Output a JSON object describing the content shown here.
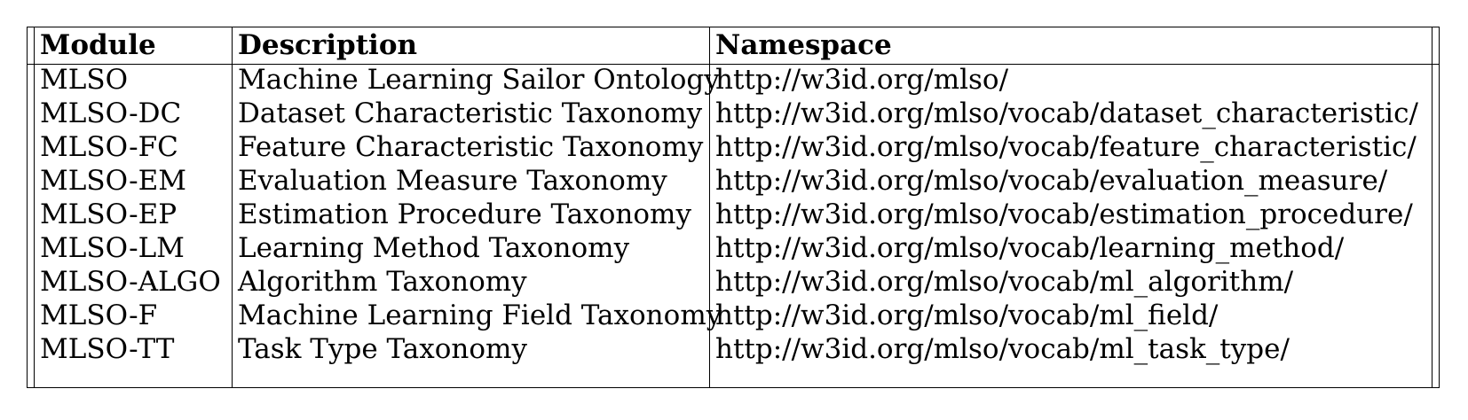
{
  "table": {
    "headers": {
      "module": "Module",
      "description": "Description",
      "namespace": "Namespace"
    },
    "rows": [
      {
        "module": "MLSO",
        "description": "Machine Learning Sailor Ontology",
        "namespace": "http://w3id.org/mlso/"
      },
      {
        "module": "MLSO-DC",
        "description": "Dataset Characteristic Taxonomy",
        "namespace": "http://w3id.org/mlso/vocab/dataset_characteristic/"
      },
      {
        "module": "MLSO-FC",
        "description": "Feature Characteristic Taxonomy",
        "namespace": "http://w3id.org/mlso/vocab/feature_characteristic/"
      },
      {
        "module": "MLSO-EM",
        "description": "Evaluation Measure Taxonomy",
        "namespace": "http://w3id.org/mlso/vocab/evaluation_measure/"
      },
      {
        "module": "MLSO-EP",
        "description": "Estimation Procedure Taxonomy",
        "namespace": "http://w3id.org/mlso/vocab/estimation_procedure/"
      },
      {
        "module": "MLSO-LM",
        "description": "Learning Method Taxonomy",
        "namespace": "http://w3id.org/mlso/vocab/learning_method/"
      },
      {
        "module": "MLSO-ALGO",
        "description": "Algorithm Taxonomy",
        "namespace": "http://w3id.org/mlso/vocab/ml_algorithm/"
      },
      {
        "module": "MLSO-F",
        "description": "Machine Learning Field Taxonomy",
        "namespace": "http://w3id.org/mlso/vocab/ml_field/"
      },
      {
        "module": "MLSO-TT",
        "description": "Task Type Taxonomy",
        "namespace": "http://w3id.org/mlso/vocab/ml_task_type/"
      }
    ]
  }
}
